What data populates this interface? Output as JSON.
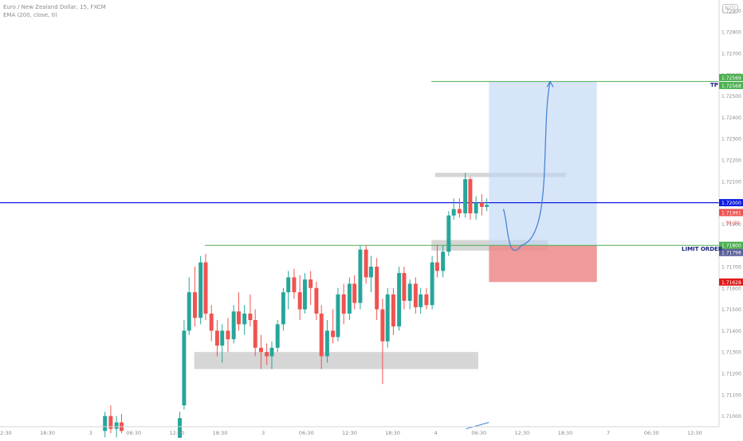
{
  "header": {
    "title": "Euro / New Zealand Dollar, 15, FXCM",
    "indicator": "EMA (200, close, 0)"
  },
  "logo": "NZD",
  "colors": {
    "up": "#26a69a",
    "down": "#ef5350",
    "tp_line": "#4caf50",
    "entry_line": "#4caf50",
    "price_line": "#0d1be0",
    "profit_zone": "#bbd3f3",
    "loss_zone": "#ec8a8a",
    "zone_gray": "#c8c8c8",
    "projection": "#3f7fd4"
  },
  "chart_data": {
    "type": "candlestick",
    "symbol": "EURNZD",
    "timeframe": "15",
    "ylim": [
      1.7095,
      1.7295
    ],
    "y_ticks": [
      "1.72900",
      "1.72800",
      "1.72700",
      "1.72600",
      "1.72500",
      "1.72400",
      "1.72300",
      "1.72200",
      "1.72100",
      "1.72000",
      "1.71900",
      "1.71800",
      "1.71700",
      "1.71600",
      "1.71500",
      "1.71400",
      "1.71300",
      "1.71200",
      "1.71100",
      "1.71000"
    ],
    "x_ticks": [
      {
        "label": "12:30",
        "x": 0.6
      },
      {
        "label": "18:30",
        "x": 6.6
      },
      {
        "label": "3",
        "x": 12.6
      },
      {
        "label": "06:30",
        "x": 18.6
      },
      {
        "label": "12:30",
        "x": 24.6
      },
      {
        "label": "18:30",
        "x": 30.6
      },
      {
        "label": "3",
        "x": 36.6
      },
      {
        "label": "06:30",
        "x": 42.6
      },
      {
        "label": "12:30",
        "x": 48.6
      },
      {
        "label": "18:30",
        "x": 54.6
      },
      {
        "label": "4",
        "x": 60.6
      },
      {
        "label": "06:30",
        "x": 66.6
      },
      {
        "label": "12:30",
        "x": 72.6
      },
      {
        "label": "18:30",
        "x": 78.6
      },
      {
        "label": "7",
        "x": 84.6
      },
      {
        "label": "06:30",
        "x": 90.6
      },
      {
        "label": "12:30",
        "x": 96.6
      }
    ],
    "x_range": [
      0,
      100
    ],
    "candles": [
      {
        "x": 14.6,
        "o": 1.7093,
        "h": 1.7102,
        "l": 1.709,
        "c": 1.71
      },
      {
        "x": 15.4,
        "o": 1.71,
        "h": 1.7105,
        "l": 1.7092,
        "c": 1.7094
      },
      {
        "x": 16.2,
        "o": 1.7094,
        "h": 1.71,
        "l": 1.709,
        "c": 1.7097
      },
      {
        "x": 16.9,
        "o": 1.7097,
        "h": 1.7101,
        "l": 1.7092,
        "c": 1.7093
      },
      {
        "x": 25.0,
        "o": 1.7088,
        "h": 1.7102,
        "l": 1.7086,
        "c": 1.7099
      },
      {
        "x": 25.6,
        "o": 1.7105,
        "h": 1.7145,
        "l": 1.7103,
        "c": 1.714
      },
      {
        "x": 26.3,
        "o": 1.714,
        "h": 1.7165,
        "l": 1.7138,
        "c": 1.7158
      },
      {
        "x": 27.1,
        "o": 1.7158,
        "h": 1.717,
        "l": 1.7142,
        "c": 1.7146
      },
      {
        "x": 27.9,
        "o": 1.7146,
        "h": 1.7175,
        "l": 1.7143,
        "c": 1.7172
      },
      {
        "x": 28.6,
        "o": 1.7172,
        "h": 1.7176,
        "l": 1.7145,
        "c": 1.7148
      },
      {
        "x": 29.4,
        "o": 1.7148,
        "h": 1.7152,
        "l": 1.7135,
        "c": 1.714
      },
      {
        "x": 30.2,
        "o": 1.714,
        "h": 1.7145,
        "l": 1.7128,
        "c": 1.7133
      },
      {
        "x": 30.9,
        "o": 1.7133,
        "h": 1.7143,
        "l": 1.7125,
        "c": 1.714
      },
      {
        "x": 31.7,
        "o": 1.714,
        "h": 1.7146,
        "l": 1.713,
        "c": 1.7136
      },
      {
        "x": 32.5,
        "o": 1.7136,
        "h": 1.7152,
        "l": 1.7134,
        "c": 1.7149
      },
      {
        "x": 33.2,
        "o": 1.7149,
        "h": 1.7158,
        "l": 1.714,
        "c": 1.7143
      },
      {
        "x": 34.0,
        "o": 1.7143,
        "h": 1.7152,
        "l": 1.7138,
        "c": 1.7148
      },
      {
        "x": 34.8,
        "o": 1.7148,
        "h": 1.7157,
        "l": 1.7142,
        "c": 1.7145
      },
      {
        "x": 35.5,
        "o": 1.7145,
        "h": 1.715,
        "l": 1.7128,
        "c": 1.7132
      },
      {
        "x": 36.3,
        "o": 1.7132,
        "h": 1.7138,
        "l": 1.7122,
        "c": 1.713
      },
      {
        "x": 37.1,
        "o": 1.713,
        "h": 1.7134,
        "l": 1.7124,
        "c": 1.7128
      },
      {
        "x": 37.8,
        "o": 1.7128,
        "h": 1.7135,
        "l": 1.7122,
        "c": 1.7132
      },
      {
        "x": 38.6,
        "o": 1.7132,
        "h": 1.7145,
        "l": 1.713,
        "c": 1.7143
      },
      {
        "x": 39.4,
        "o": 1.7143,
        "h": 1.716,
        "l": 1.714,
        "c": 1.7158
      },
      {
        "x": 40.1,
        "o": 1.7158,
        "h": 1.7168,
        "l": 1.715,
        "c": 1.7165
      },
      {
        "x": 40.9,
        "o": 1.7165,
        "h": 1.7169,
        "l": 1.7155,
        "c": 1.7158
      },
      {
        "x": 41.7,
        "o": 1.7158,
        "h": 1.7166,
        "l": 1.7145,
        "c": 1.715
      },
      {
        "x": 42.4,
        "o": 1.715,
        "h": 1.7167,
        "l": 1.7148,
        "c": 1.7164
      },
      {
        "x": 43.2,
        "o": 1.7164,
        "h": 1.7168,
        "l": 1.7152,
        "c": 1.716
      },
      {
        "x": 44.0,
        "o": 1.716,
        "h": 1.7163,
        "l": 1.7145,
        "c": 1.7148
      },
      {
        "x": 44.7,
        "o": 1.7148,
        "h": 1.7152,
        "l": 1.7122,
        "c": 1.7128
      },
      {
        "x": 45.5,
        "o": 1.7128,
        "h": 1.7145,
        "l": 1.7125,
        "c": 1.714
      },
      {
        "x": 46.3,
        "o": 1.714,
        "h": 1.715,
        "l": 1.7134,
        "c": 1.7137
      },
      {
        "x": 47.0,
        "o": 1.7137,
        "h": 1.716,
        "l": 1.7135,
        "c": 1.7157
      },
      {
        "x": 47.8,
        "o": 1.7157,
        "h": 1.7162,
        "l": 1.7143,
        "c": 1.7148
      },
      {
        "x": 48.6,
        "o": 1.7148,
        "h": 1.7165,
        "l": 1.7145,
        "c": 1.7162
      },
      {
        "x": 49.3,
        "o": 1.7162,
        "h": 1.7166,
        "l": 1.715,
        "c": 1.7153
      },
      {
        "x": 50.1,
        "o": 1.7153,
        "h": 1.718,
        "l": 1.715,
        "c": 1.7178
      },
      {
        "x": 50.9,
        "o": 1.7178,
        "h": 1.718,
        "l": 1.7162,
        "c": 1.7165
      },
      {
        "x": 51.6,
        "o": 1.7165,
        "h": 1.7175,
        "l": 1.7158,
        "c": 1.717
      },
      {
        "x": 52.4,
        "o": 1.717,
        "h": 1.7174,
        "l": 1.7145,
        "c": 1.715
      },
      {
        "x": 53.2,
        "o": 1.715,
        "h": 1.7155,
        "l": 1.7115,
        "c": 1.7135
      },
      {
        "x": 53.9,
        "o": 1.7135,
        "h": 1.716,
        "l": 1.7132,
        "c": 1.7157
      },
      {
        "x": 54.7,
        "o": 1.7157,
        "h": 1.716,
        "l": 1.7138,
        "c": 1.7142
      },
      {
        "x": 55.5,
        "o": 1.7142,
        "h": 1.717,
        "l": 1.714,
        "c": 1.7167
      },
      {
        "x": 56.2,
        "o": 1.7167,
        "h": 1.717,
        "l": 1.715,
        "c": 1.7154
      },
      {
        "x": 57.0,
        "o": 1.7154,
        "h": 1.7164,
        "l": 1.715,
        "c": 1.7162
      },
      {
        "x": 57.8,
        "o": 1.7162,
        "h": 1.7165,
        "l": 1.7148,
        "c": 1.7151
      },
      {
        "x": 58.5,
        "o": 1.7151,
        "h": 1.716,
        "l": 1.7148,
        "c": 1.7157
      },
      {
        "x": 59.3,
        "o": 1.7157,
        "h": 1.716,
        "l": 1.715,
        "c": 1.7152
      },
      {
        "x": 60.1,
        "o": 1.7152,
        "h": 1.7175,
        "l": 1.715,
        "c": 1.7172
      },
      {
        "x": 60.8,
        "o": 1.7172,
        "h": 1.718,
        "l": 1.7165,
        "c": 1.7168
      },
      {
        "x": 61.6,
        "o": 1.7168,
        "h": 1.718,
        "l": 1.7165,
        "c": 1.7177
      },
      {
        "x": 62.4,
        "o": 1.7177,
        "h": 1.7196,
        "l": 1.7175,
        "c": 1.7194
      },
      {
        "x": 63.1,
        "o": 1.7194,
        "h": 1.7202,
        "l": 1.7192,
        "c": 1.7197
      },
      {
        "x": 63.9,
        "o": 1.7197,
        "h": 1.7202,
        "l": 1.7193,
        "c": 1.7195
      },
      {
        "x": 64.7,
        "o": 1.7195,
        "h": 1.7214,
        "l": 1.7193,
        "c": 1.7211
      },
      {
        "x": 65.4,
        "o": 1.7211,
        "h": 1.7212,
        "l": 1.7192,
        "c": 1.7195
      },
      {
        "x": 66.2,
        "o": 1.7195,
        "h": 1.7203,
        "l": 1.7192,
        "c": 1.72
      },
      {
        "x": 67.0,
        "o": 1.72,
        "h": 1.7204,
        "l": 1.7194,
        "c": 1.7198
      },
      {
        "x": 67.7,
        "o": 1.7198,
        "h": 1.7202,
        "l": 1.7196,
        "c": 1.7199
      }
    ],
    "levels": [
      {
        "name": "TP",
        "price": 1.72568,
        "label": "1.72568",
        "label2": "1.72569",
        "x_start": 60.0
      },
      {
        "name": "LIMIT ORDER",
        "price": 1.718,
        "label": "1.71800",
        "label2": "1.71798",
        "x_start": 28.5
      },
      {
        "name": "current-price",
        "price": 1.72,
        "label": "1.72000",
        "x_start": 0
      },
      {
        "name": "stop",
        "price": 1.71628,
        "label": "1.71628"
      }
    ],
    "last_price": {
      "price": 1.71991,
      "label": "1.71991",
      "countdown": "39:30"
    },
    "position": {
      "x_start": 68.0,
      "x_end": 83.0,
      "entry": 1.718,
      "tp": 1.72568,
      "sl": 1.71628
    },
    "zones": [
      {
        "x_start": 27.0,
        "x_end": 66.5,
        "top": 1.713,
        "bottom": 1.7122
      },
      {
        "x_start": 60.0,
        "x_end": 76.2,
        "top": 1.71825,
        "bottom": 1.71775
      },
      {
        "x_start": 60.5,
        "x_end": 78.7,
        "top": 1.7214,
        "bottom": 1.7212
      }
    ],
    "projection": [
      [
        70.0,
        1.7197
      ],
      [
        72.5,
        1.718
      ],
      [
        76.5,
        1.72568
      ]
    ],
    "bottom_line": [
      [
        64.8,
        1.7094
      ],
      [
        68.0,
        1.7097
      ]
    ]
  }
}
